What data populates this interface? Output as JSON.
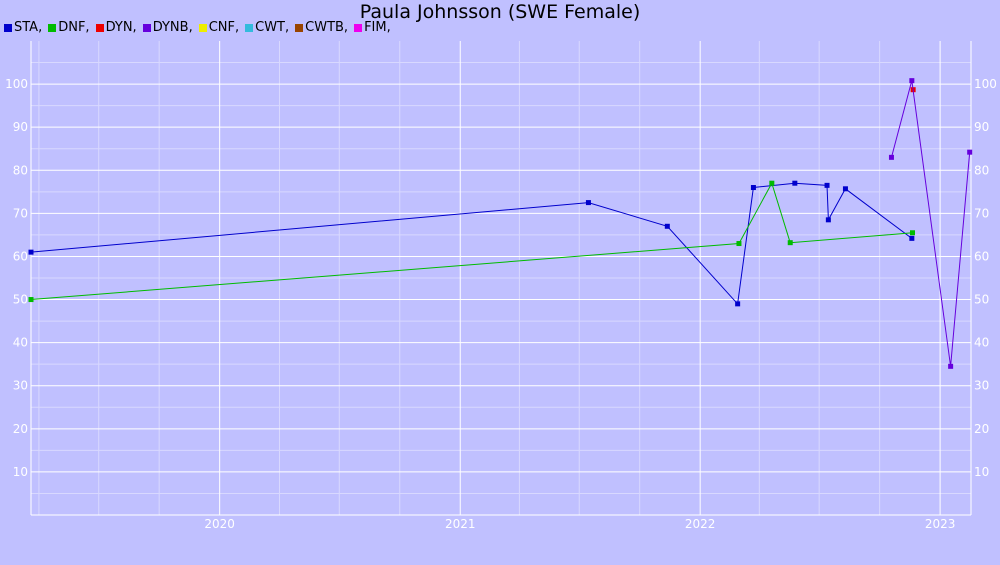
{
  "chart_data": {
    "type": "line",
    "title": "Paula Johnsson (SWE Female)",
    "xlabel": "",
    "ylabel": "",
    "xlim": [
      "2019-03-20",
      "2023-02-17"
    ],
    "ylim": [
      0,
      110
    ],
    "x_ticks": [
      "2020-01-01",
      "2021-01-01",
      "2022-01-01",
      "2023-01-01"
    ],
    "x_tick_labels": [
      "2020",
      "2021",
      "2022",
      "2023"
    ],
    "y_ticks": [
      10,
      20,
      30,
      40,
      50,
      60,
      70,
      80,
      90,
      100
    ],
    "y_tick_labels": [
      "10",
      "20",
      "30",
      "40",
      "50",
      "60",
      "70",
      "80",
      "90",
      "100"
    ],
    "grid": true,
    "legend_position": "top-left",
    "legend": [
      {
        "label": "STA,",
        "color": "#0000cc"
      },
      {
        "label": "DNF,",
        "color": "#00bb00"
      },
      {
        "label": "DYN,",
        "color": "#ee0000"
      },
      {
        "label": "DYNB,",
        "color": "#6600dd"
      },
      {
        "label": "CNF,",
        "color": "#eeee00"
      },
      {
        "label": "CWT,",
        "color": "#33bbdd"
      },
      {
        "label": "CWTB,",
        "color": "#994400"
      },
      {
        "label": "FIM,",
        "color": "#ee00ee"
      }
    ],
    "series": [
      {
        "color": "#0000cc",
        "points": [
          [
            "2019-03-20",
            61
          ],
          [
            "2021-07-15",
            72.5
          ],
          [
            "2021-11-12",
            67
          ],
          [
            "2022-02-27",
            49
          ],
          [
            "2022-03-23",
            76
          ],
          [
            "2022-05-25",
            77
          ],
          [
            "2022-07-13",
            76.5
          ],
          [
            "2022-07-15",
            68.5
          ],
          [
            "2022-08-10",
            75.7
          ],
          [
            "2022-11-19",
            64.2
          ]
        ]
      },
      {
        "color": "#00bb00",
        "points": [
          [
            "2019-03-20",
            50
          ],
          [
            "2022-03-01",
            63
          ],
          [
            "2022-04-20",
            77
          ],
          [
            "2022-05-18",
            63.2
          ],
          [
            "2022-11-20",
            65.5
          ]
        ]
      },
      {
        "color": "#ee0000",
        "points": [
          [
            "2022-11-21",
            98.7
          ]
        ]
      },
      {
        "color": "#6600dd",
        "points": [
          [
            "2022-10-19",
            83
          ],
          [
            "2022-11-19",
            100.8
          ],
          [
            "2023-01-17",
            34.5
          ],
          [
            "2023-02-15",
            84.2
          ]
        ]
      }
    ]
  }
}
